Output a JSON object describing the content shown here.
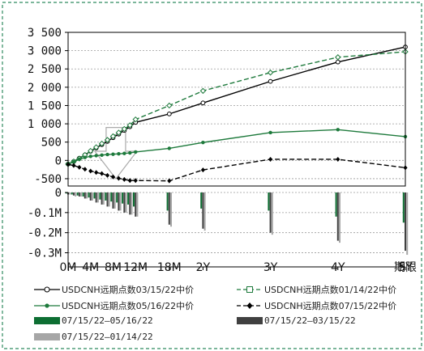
{
  "chart_data": {
    "type": "line",
    "upper_panel": {
      "ylim": [
        -700,
        3500
      ],
      "yticks": [
        3500,
        3000,
        2500,
        2000,
        1500,
        1000,
        500,
        0,
        -500
      ],
      "ytick_labels": [
        "3 500",
        "3 000",
        "2 500",
        "2 000",
        "1 500",
        "1 000",
        "500",
        "0",
        "-500"
      ],
      "series": [
        {
          "name": "USDCNH远期点数03/15/22中价",
          "color": "#000000",
          "style": "solid",
          "marker": "open-circle",
          "values": [
            -100,
            -30,
            60,
            150,
            250,
            340,
            430,
            520,
            620,
            720,
            820,
            920,
            1040,
            1270,
            1570,
            2160,
            2690,
            3100
          ]
        },
        {
          "name": "USDCNH远期点数01/14/22中价",
          "color": "#1e7a3c",
          "style": "dashed",
          "marker": "open-square",
          "values": [
            -100,
            -30,
            50,
            150,
            260,
            360,
            460,
            560,
            660,
            760,
            860,
            960,
            1120,
            1500,
            1900,
            2400,
            2820,
            2970
          ]
        },
        {
          "name": "USDCNH远期点数05/16/22中价",
          "color": "#1e7a3c",
          "style": "solid",
          "marker": "filled-circle",
          "values": [
            -100,
            -40,
            30,
            80,
            110,
            130,
            145,
            160,
            170,
            180,
            190,
            205,
            230,
            330,
            490,
            760,
            840,
            650
          ]
        },
        {
          "name": "USDCNH远期点数07/15/22中价",
          "color": "#000000",
          "style": "dashed",
          "marker": "filled-diamond",
          "values": [
            -110,
            -140,
            -190,
            -240,
            -290,
            -330,
            -360,
            -410,
            -450,
            -490,
            -520,
            -550,
            -550,
            -560,
            -260,
            30,
            30,
            -200
          ]
        }
      ]
    },
    "lower_panel": {
      "type": "bar",
      "ylim": [
        -0.33,
        0
      ],
      "yticks": [
        0,
        -0.1,
        -0.2,
        -0.3
      ],
      "ytick_labels": [
        "0",
        "-0.1M",
        "-0.2M",
        "-0.3M"
      ],
      "series": [
        {
          "name": "07/15/22—05/16/22",
          "color": "#0d6e32",
          "values": [
            -0.005,
            -0.01,
            -0.015,
            -0.02,
            -0.025,
            -0.03,
            -0.035,
            -0.04,
            -0.045,
            -0.05,
            -0.055,
            -0.06,
            -0.07,
            -0.09,
            -0.08,
            -0.09,
            -0.12,
            -0.15
          ]
        },
        {
          "name": "07/15/22—03/15/22",
          "color": "#404040",
          "values": [
            -0.01,
            -0.015,
            -0.02,
            -0.03,
            -0.04,
            -0.05,
            -0.06,
            -0.07,
            -0.08,
            -0.09,
            -0.1,
            -0.11,
            -0.12,
            -0.16,
            -0.18,
            -0.2,
            -0.24,
            -0.29
          ]
        },
        {
          "name": "07/15/22—01/14/22",
          "color": "#a6a6a6",
          "values": [
            -0.01,
            -0.02,
            -0.02,
            -0.03,
            -0.04,
            -0.05,
            -0.06,
            -0.07,
            -0.08,
            -0.09,
            -0.1,
            -0.11,
            -0.12,
            -0.17,
            -0.19,
            -0.21,
            -0.25,
            -0.31
          ]
        }
      ]
    },
    "x_positions": [
      0,
      1,
      2,
      3,
      4,
      5,
      6,
      7,
      8,
      9,
      10,
      11,
      12,
      18,
      24,
      36,
      48,
      60
    ],
    "x_axis_max": 60,
    "xticks": [
      {
        "at": 0,
        "label": "0M"
      },
      {
        "at": 4,
        "label": "4M"
      },
      {
        "at": 8,
        "label": "8M"
      },
      {
        "at": 12,
        "label": "12M"
      },
      {
        "at": 18,
        "label": "18M"
      },
      {
        "at": 24,
        "label": "2Y"
      },
      {
        "at": 36,
        "label": "3Y"
      },
      {
        "at": 48,
        "label": "4Y"
      },
      {
        "at": 60,
        "label": "5Y"
      }
    ],
    "xlabel": "期限",
    "grid": true,
    "legend_position": "bottom",
    "annotation": "down-arrow"
  }
}
